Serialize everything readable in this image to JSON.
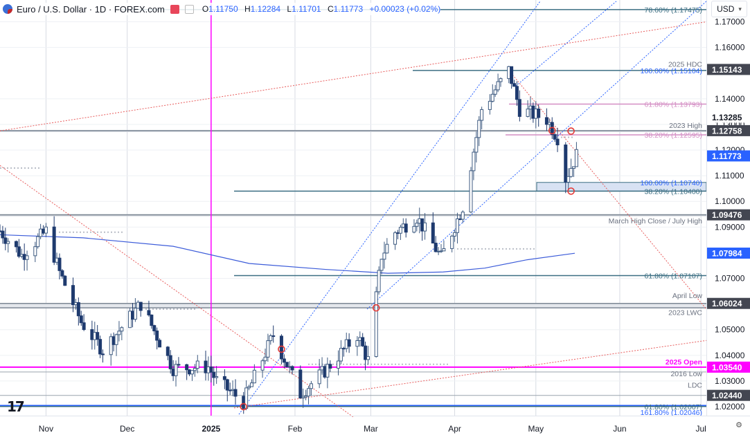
{
  "header": {
    "symbol_title": "Euro / U.S. Dollar · 1D · FOREX.com",
    "open_key": "O",
    "open": "1.11750",
    "high_key": "H",
    "high": "1.12284",
    "low_key": "L",
    "low": "1.11701",
    "close_key": "C",
    "close": "1.11773",
    "change": "+0.00023 (+0.02%)",
    "currency": "USD"
  },
  "colors": {
    "up": "#3d5a80",
    "down": "#1e3a6e",
    "grid": "#d7dbe3",
    "fib_blue": "#2962ff",
    "pink": "#d48ec4",
    "teal": "#3b6e82",
    "magenta": "#ff00ff",
    "red_dotted": "#e85c5c",
    "ma_blue": "#3b5bd9"
  },
  "icons": [
    "flag-icon",
    "calendar-icon",
    "tradingview-logo-icon",
    "timezone-icon"
  ],
  "x_axis": {
    "labels": [
      {
        "text": "Nov",
        "bold": false
      },
      {
        "text": "Dec",
        "bold": false
      },
      {
        "text": "2025",
        "bold": true
      },
      {
        "text": "Feb",
        "bold": false
      },
      {
        "text": "Mar",
        "bold": false
      },
      {
        "text": "Apr",
        "bold": false
      },
      {
        "text": "May",
        "bold": false
      },
      {
        "text": "Jun",
        "bold": false
      },
      {
        "text": "Jul",
        "bold": false
      }
    ]
  },
  "y_axis": {
    "ticks": [
      "1.17000",
      "1.16000",
      "1.14000",
      "1.13000",
      "1.12000",
      "1.11000",
      "1.10000",
      "1.09000",
      "1.07000",
      "1.06000",
      "1.05000",
      "1.04000",
      "1.03000",
      "1.02000"
    ],
    "price_tags": [
      {
        "text": "1.15143",
        "style": "dark"
      },
      {
        "text": "1.13285",
        "style": "plain"
      },
      {
        "text": "1.12758",
        "style": "dark"
      },
      {
        "text": "1.11773",
        "style": "blue"
      },
      {
        "text": "1.09476",
        "style": "dark"
      },
      {
        "text": "1.07984",
        "style": "blue"
      },
      {
        "text": "1.06024",
        "style": "dark"
      },
      {
        "text": "1.03540",
        "style": "magenta"
      },
      {
        "text": "1.02440",
        "style": "dark"
      }
    ]
  },
  "annotations": [
    {
      "text": "78.60% (1.17475)",
      "color": "teal"
    },
    {
      "text": "2025 HDC",
      "color": "gray"
    },
    {
      "text": "100.00% (1.15104)",
      "color": "blue"
    },
    {
      "text": "61.80% (1.13793)",
      "color": "pink"
    },
    {
      "text": "2023 High",
      "color": "gray"
    },
    {
      "text": "38.20% (1.12595)",
      "color": "pink"
    },
    {
      "text": "100.00% (1.10740)",
      "color": "blue"
    },
    {
      "text": "38.20% (1.10400)",
      "color": "teal"
    },
    {
      "text": "March High Close / July High",
      "color": "gray"
    },
    {
      "text": "61.80% (1.07107)",
      "color": "teal"
    },
    {
      "text": "April Low",
      "color": "gray"
    },
    {
      "text": "2023 LWC",
      "color": "gray"
    },
    {
      "text": "2025 Open",
      "color": "magenta"
    },
    {
      "text": "2016 Low",
      "color": "gray"
    },
    {
      "text": "LDC",
      "color": "gray"
    },
    {
      "text": "61.80% (1.02007)",
      "color": "teal"
    },
    {
      "text": "161.80% (1.02046)",
      "color": "blue"
    }
  ],
  "chart_data": {
    "type": "candlestick",
    "symbol": "EUR/USD",
    "timeframe": "1D",
    "ylim": [
      1.0165,
      1.1785
    ],
    "x_range": [
      "2024-10-15",
      "2025-07-03"
    ],
    "last_close": 1.11773,
    "moving_average_last": 1.07984,
    "horizontal_levels": [
      1.17475,
      1.15143,
      1.15104,
      1.13793,
      1.13285,
      1.12758,
      1.12595,
      1.1074,
      1.104,
      1.09476,
      1.07107,
      1.06024,
      1.0585,
      1.0354,
      1.0244,
      1.02046,
      1.02007
    ],
    "path_points": [
      [
        "2024-10-15",
        1.0885
      ],
      [
        "2024-10-23",
        1.079
      ],
      [
        "2024-11-01",
        1.0884
      ],
      [
        "2024-11-06",
        1.0724
      ],
      [
        "2024-11-14",
        1.053
      ],
      [
        "2024-11-22",
        1.042
      ],
      [
        "2024-12-06",
        1.06
      ],
      [
        "2024-12-18",
        1.035
      ],
      [
        "2024-12-31",
        1.0355
      ],
      [
        "2025-01-03",
        1.03
      ],
      [
        "2025-01-13",
        1.022
      ],
      [
        "2025-01-24",
        1.048
      ],
      [
        "2025-02-03",
        1.025
      ],
      [
        "2025-02-12",
        1.034
      ],
      [
        "2025-02-24",
        1.048
      ],
      [
        "2025-02-28",
        1.038
      ],
      [
        "2025-03-05",
        1.079
      ],
      [
        "2025-03-10",
        1.088
      ],
      [
        "2025-03-18",
        1.094
      ],
      [
        "2025-03-27",
        1.078
      ],
      [
        "2025-04-04",
        1.098
      ],
      [
        "2025-04-11",
        1.136
      ],
      [
        "2025-04-21",
        1.151
      ],
      [
        "2025-04-25",
        1.136
      ],
      [
        "2025-05-05",
        1.132
      ],
      [
        "2025-05-09",
        1.125
      ],
      [
        "2025-05-12",
        1.109
      ],
      [
        "2025-05-16",
        1.118
      ]
    ],
    "markers": [
      {
        "date": "2025-01-13",
        "price": 1.02
      },
      {
        "date": "2025-01-27",
        "price": 1.0424
      },
      {
        "date": "2025-03-03",
        "price": 1.0585
      },
      {
        "date": "2025-05-07",
        "price": 1.1276
      },
      {
        "date": "2025-05-14",
        "price": 1.1274
      },
      {
        "date": "2025-05-14",
        "price": 1.104
      }
    ]
  }
}
